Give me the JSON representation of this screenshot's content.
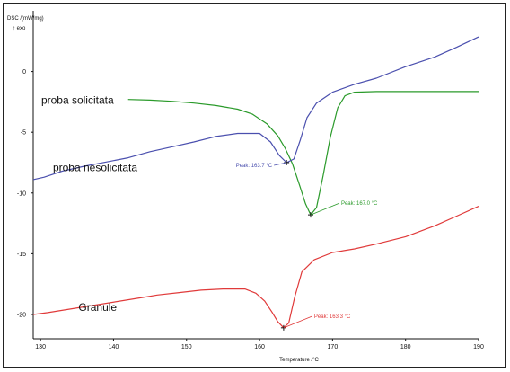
{
  "chart_data": {
    "type": "line",
    "ylabel": "DSC /(mW/mg)",
    "exo_label": "↑ exo",
    "xlabel": "Temperature /°C",
    "xlim": [
      129,
      190
    ],
    "ylim": [
      -22,
      5
    ],
    "x_ticks": [
      130,
      140,
      150,
      160,
      170,
      180,
      190
    ],
    "y_ticks": [
      0,
      -5,
      -10,
      -15,
      -20
    ],
    "grid": false,
    "series": [
      {
        "name": "proba solicitata",
        "color": "#2a9a2a",
        "points": [
          [
            142,
            -2.3
          ],
          [
            145,
            -2.35
          ],
          [
            148,
            -2.45
          ],
          [
            151,
            -2.6
          ],
          [
            154,
            -2.8
          ],
          [
            157,
            -3.1
          ],
          [
            159,
            -3.5
          ],
          [
            161,
            -4.3
          ],
          [
            162.5,
            -5.3
          ],
          [
            163.5,
            -6.3
          ],
          [
            164.5,
            -7.6
          ],
          [
            165.5,
            -9.4
          ],
          [
            166.3,
            -10.9
          ],
          [
            167.0,
            -11.8
          ],
          [
            167.8,
            -11.2
          ],
          [
            168.7,
            -8.6
          ],
          [
            169.7,
            -5.4
          ],
          [
            170.7,
            -3.0
          ],
          [
            171.7,
            -2.0
          ],
          [
            173,
            -1.7
          ],
          [
            176,
            -1.65
          ],
          [
            180,
            -1.65
          ],
          [
            185,
            -1.65
          ],
          [
            190,
            -1.65
          ]
        ]
      },
      {
        "name": "proba nesolicitata",
        "color": "#4a4fae",
        "points": [
          [
            129,
            -8.9
          ],
          [
            130.5,
            -8.7
          ],
          [
            133,
            -8.2
          ],
          [
            136,
            -7.8
          ],
          [
            139,
            -7.45
          ],
          [
            142,
            -7.1
          ],
          [
            145,
            -6.6
          ],
          [
            148,
            -6.2
          ],
          [
            151,
            -5.8
          ],
          [
            154,
            -5.35
          ],
          [
            157,
            -5.1
          ],
          [
            160,
            -5.1
          ],
          [
            161.5,
            -5.8
          ],
          [
            162.7,
            -6.9
          ],
          [
            163.7,
            -7.5
          ],
          [
            164.7,
            -7.2
          ],
          [
            165.6,
            -5.6
          ],
          [
            166.5,
            -3.8
          ],
          [
            167.8,
            -2.6
          ],
          [
            170,
            -1.7
          ],
          [
            173,
            -1.05
          ],
          [
            176,
            -0.55
          ],
          [
            180,
            0.4
          ],
          [
            184,
            1.2
          ],
          [
            187,
            2.0
          ],
          [
            190,
            2.85
          ]
        ]
      },
      {
        "name": "Granule",
        "color": "#e03a3a",
        "points": [
          [
            129,
            -20.0
          ],
          [
            131,
            -19.85
          ],
          [
            144,
            -18.6
          ],
          [
            146,
            -18.4
          ],
          [
            149,
            -18.2
          ],
          [
            152,
            -18.0
          ],
          [
            155,
            -17.9
          ],
          [
            158,
            -17.9
          ],
          [
            159.5,
            -18.25
          ],
          [
            160.7,
            -18.9
          ],
          [
            161.7,
            -19.8
          ],
          [
            162.5,
            -20.6
          ],
          [
            163.3,
            -21.1
          ],
          [
            164.0,
            -20.7
          ],
          [
            164.8,
            -18.6
          ],
          [
            165.8,
            -16.5
          ],
          [
            167.5,
            -15.5
          ],
          [
            170,
            -14.9
          ],
          [
            173,
            -14.6
          ],
          [
            176,
            -14.2
          ],
          [
            180,
            -13.6
          ],
          [
            184,
            -12.7
          ],
          [
            187,
            -11.9
          ],
          [
            190,
            -11.1
          ]
        ]
      }
    ],
    "series_labels": [
      {
        "text": "proba solicitata",
        "x": 130.1,
        "y": -2.35,
        "anchor": "start"
      },
      {
        "text": "proba nesolicitata",
        "x": 131.7,
        "y": -7.9,
        "anchor": "start"
      },
      {
        "text": "Granule",
        "x": 135.2,
        "y": -19.4,
        "anchor": "start"
      }
    ],
    "peaks": [
      {
        "text": "Peak: 163.7 °C",
        "x": 163.7,
        "y": -7.5,
        "series": "proba nesolicitata",
        "color": "#4a4fae",
        "label_side": "left"
      },
      {
        "text": "Peak: 167.0 °C",
        "x": 167.0,
        "y": -11.8,
        "series": "proba solicitata",
        "color": "#2a9a2a",
        "label_side": "right"
      },
      {
        "text": "Peak: 163.3 °C",
        "x": 163.3,
        "y": -21.1,
        "series": "Granule",
        "color": "#e03a3a",
        "label_side": "right"
      }
    ]
  }
}
